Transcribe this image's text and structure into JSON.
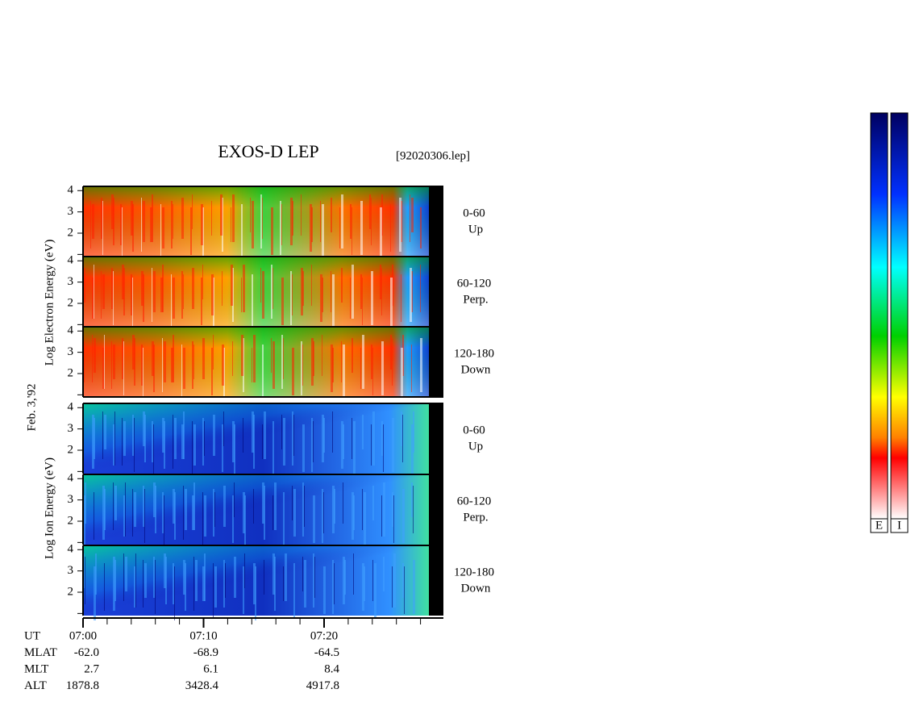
{
  "chart_data": {
    "type": "spectrogram",
    "title": "EXOS-D LEP",
    "file": "[92020306.lep]",
    "date": "Feb. 3,'92",
    "groups": [
      {
        "label": "Log Electron Energy (eV)"
      },
      {
        "label": "Log Ion Energy (eV)"
      }
    ],
    "panels": [
      {
        "group": 0,
        "angle": "0-60",
        "direction": "Up"
      },
      {
        "group": 0,
        "angle": "60-120",
        "direction": "Perp."
      },
      {
        "group": 0,
        "angle": "120-180",
        "direction": "Down"
      },
      {
        "group": 1,
        "angle": "0-60",
        "direction": "Up"
      },
      {
        "group": 1,
        "angle": "60-120",
        "direction": "Perp."
      },
      {
        "group": 1,
        "angle": "120-180",
        "direction": "Down"
      }
    ],
    "ylim": [
      0.9,
      4.2
    ],
    "yticks": [
      2,
      3,
      4
    ],
    "yticks_minor": [
      1
    ],
    "xlim": [
      0,
      29.9
    ],
    "xticks": [
      {
        "value": 0,
        "label": "07:00"
      },
      {
        "value": 10,
        "label": "07:10"
      },
      {
        "value": 20,
        "label": "07:20"
      }
    ],
    "xticks_minor": [
      2,
      4,
      6,
      8,
      12,
      14,
      16,
      18,
      22,
      24,
      26,
      28
    ],
    "orbit": [
      {
        "name": "UT",
        "values": []
      },
      {
        "name": "MLAT",
        "values": [
          "-62.0",
          "-68.9",
          "-64.5"
        ]
      },
      {
        "name": "MLT",
        "values": [
          "2.7",
          "6.1",
          "8.4"
        ]
      },
      {
        "name": "ALT",
        "values": [
          "1878.8",
          "3428.4",
          "4917.8"
        ]
      }
    ],
    "colorbars": [
      "E",
      "I"
    ]
  }
}
